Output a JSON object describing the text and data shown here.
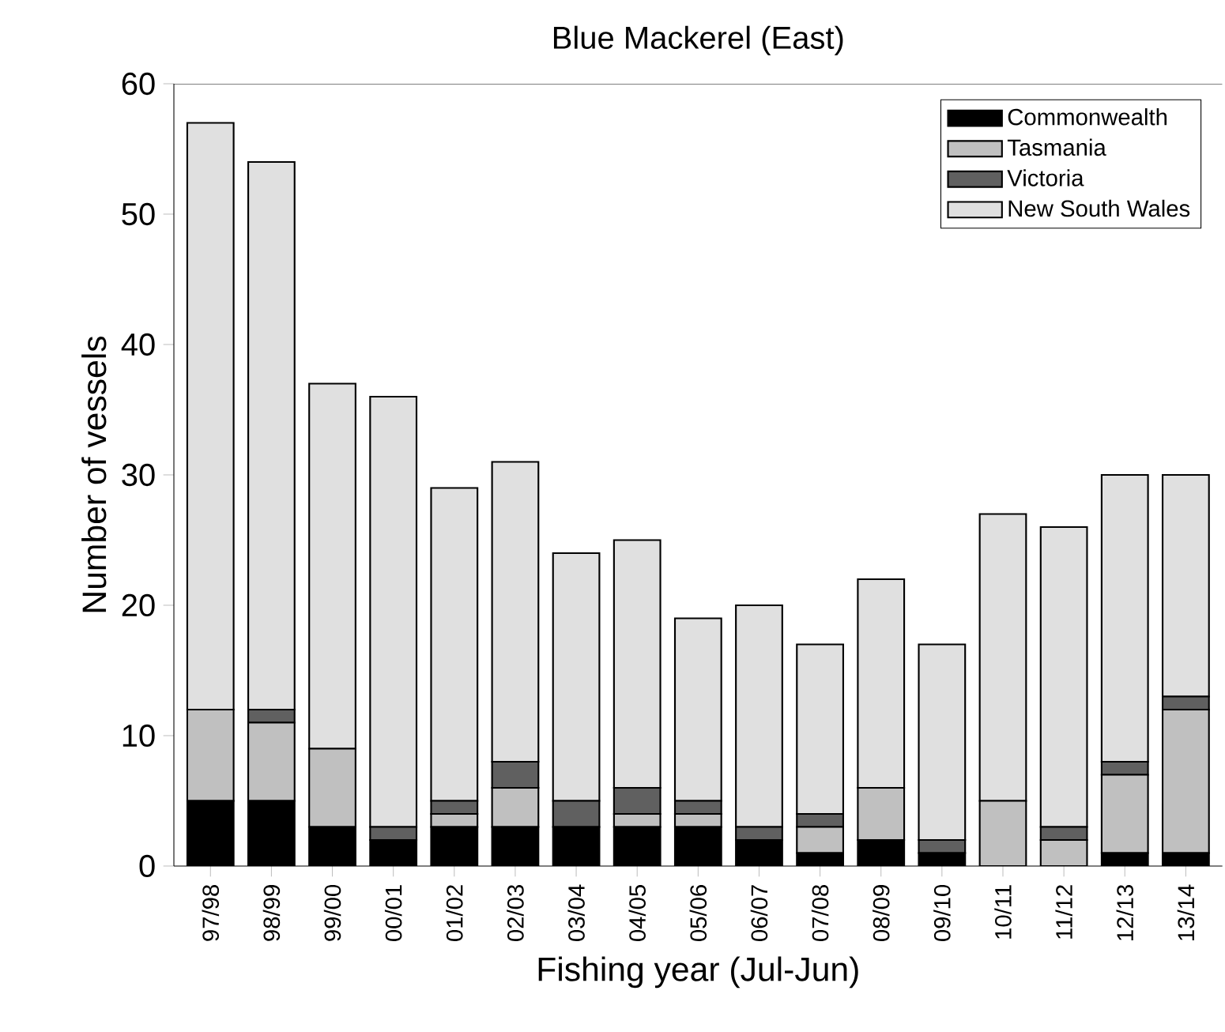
{
  "chart_data": {
    "type": "bar",
    "title": "Blue Mackerel (East)",
    "xlabel": "Fishing year (Jul-Jun)",
    "ylabel": "Number of vessels",
    "categories": [
      "97/98",
      "98/99",
      "99/00",
      "00/01",
      "01/02",
      "02/03",
      "03/04",
      "04/05",
      "05/06",
      "06/07",
      "07/08",
      "08/09",
      "09/10",
      "10/11",
      "11/12",
      "12/13",
      "13/14"
    ],
    "stacked": true,
    "series": [
      {
        "name": "Commonwealth",
        "color": "#000000",
        "values": [
          5,
          5,
          3,
          2,
          3,
          3,
          3,
          3,
          3,
          2,
          1,
          2,
          1,
          0,
          0,
          1,
          1
        ]
      },
      {
        "name": "Tasmania",
        "color": "#c0c0c0",
        "values": [
          7,
          6,
          6,
          0,
          1,
          3,
          0,
          1,
          1,
          0,
          2,
          4,
          0,
          5,
          2,
          6,
          11
        ]
      },
      {
        "name": "Victoria",
        "color": "#606060",
        "values": [
          0,
          1,
          0,
          1,
          1,
          2,
          2,
          2,
          1,
          1,
          1,
          0,
          1,
          0,
          1,
          1,
          1
        ]
      },
      {
        "name": "New South Wales",
        "color": "#e0e0e0",
        "values": [
          45,
          42,
          28,
          33,
          24,
          23,
          19,
          19,
          14,
          17,
          13,
          16,
          15,
          22,
          23,
          22,
          17
        ]
      }
    ],
    "ylim": [
      0,
      60
    ],
    "yticks": [
      0,
      10,
      20,
      30,
      40,
      50,
      60
    ],
    "grid": false,
    "legend": "top right"
  }
}
